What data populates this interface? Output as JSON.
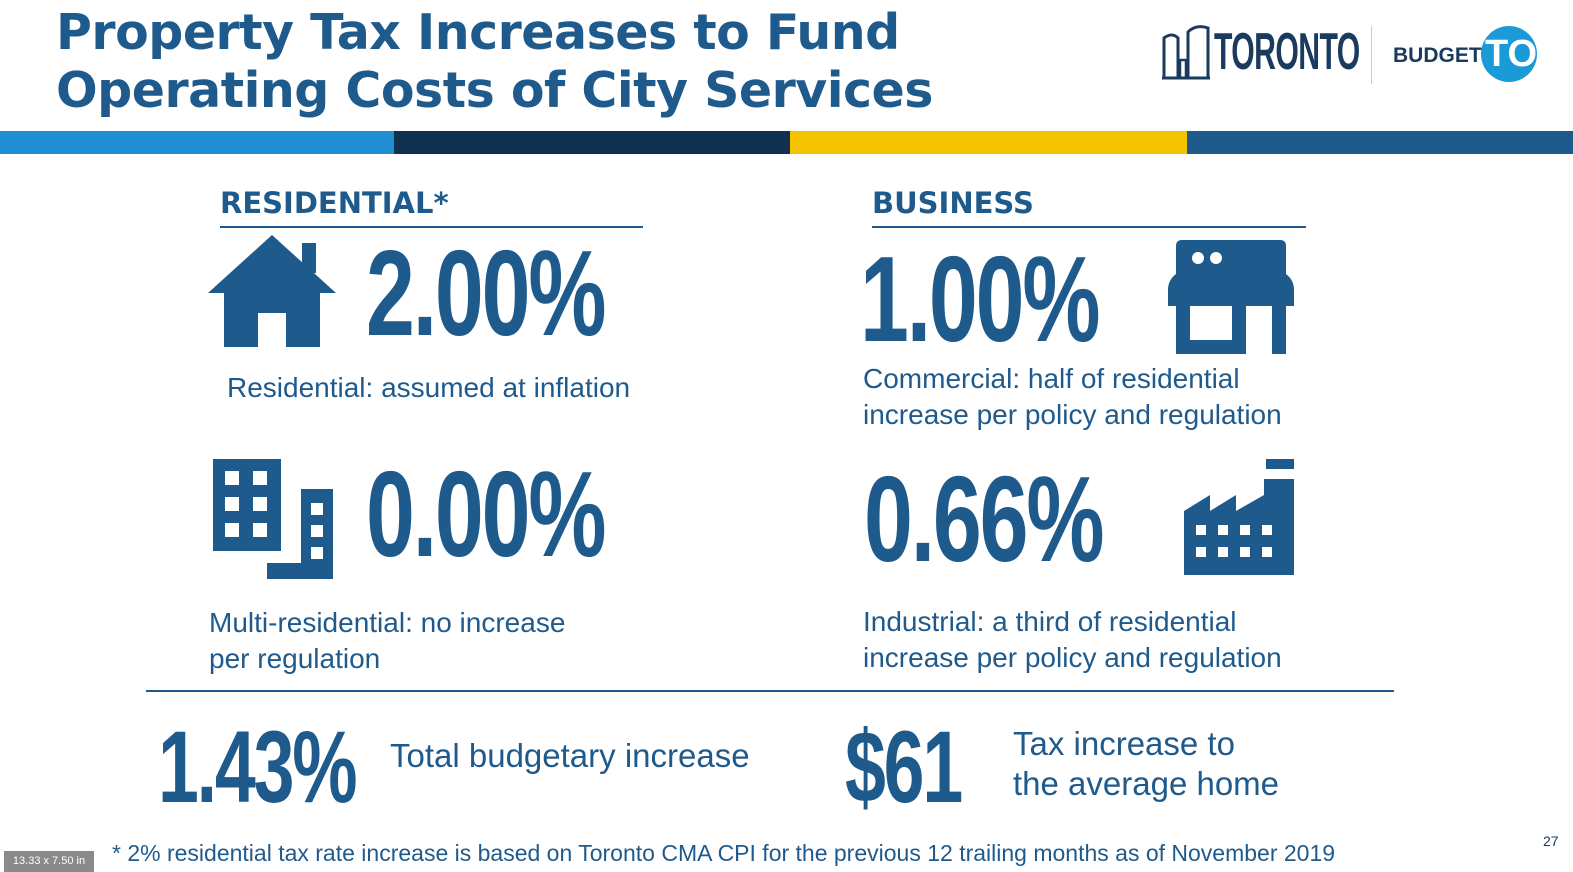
{
  "title": {
    "line1": "Property Tax Increases to Fund",
    "line2": "Operating Costs of City Services"
  },
  "logos": {
    "toronto": "TORONTO",
    "budget_prefix": "BUDGET",
    "budget_suffix": "TO"
  },
  "colors": {
    "primary": "#1f5a8c",
    "stripe": [
      "#1f8fd4",
      "#10304f",
      "#f5c400",
      "#1f5a8c"
    ],
    "logo_circle": "#1a9ad6"
  },
  "residential": {
    "heading": "RESIDENTIAL*",
    "residential_rate": "2.00%",
    "residential_desc": "Residential: assumed at inflation",
    "multi_rate": "0.00%",
    "multi_desc_line1": "Multi-residential: no increase",
    "multi_desc_line2": "per regulation"
  },
  "business": {
    "heading": "BUSINESS",
    "commercial_rate": "1.00%",
    "commercial_desc_line1": "Commercial: half of residential",
    "commercial_desc_line2": "increase per policy and regulation",
    "industrial_rate": "0.66%",
    "industrial_desc_line1": "Industrial: a third of residential",
    "industrial_desc_line2": "increase per policy and regulation"
  },
  "summary": {
    "total_rate": "1.43%",
    "total_label": "Total budgetary increase",
    "home_amount": "$61",
    "home_label_line1": "Tax increase to",
    "home_label_line2": "the average home"
  },
  "footnote": "* 2%  residential tax rate increase is based on Toronto CMA CPI for the previous 12 trailing months as of November 2019",
  "page_number": "27",
  "slide_size": "13.33 x 7.50 in",
  "icons": [
    "house-icon",
    "apartment-building-icon",
    "storefront-icon",
    "factory-icon",
    "toronto-city-hall-icon"
  ]
}
